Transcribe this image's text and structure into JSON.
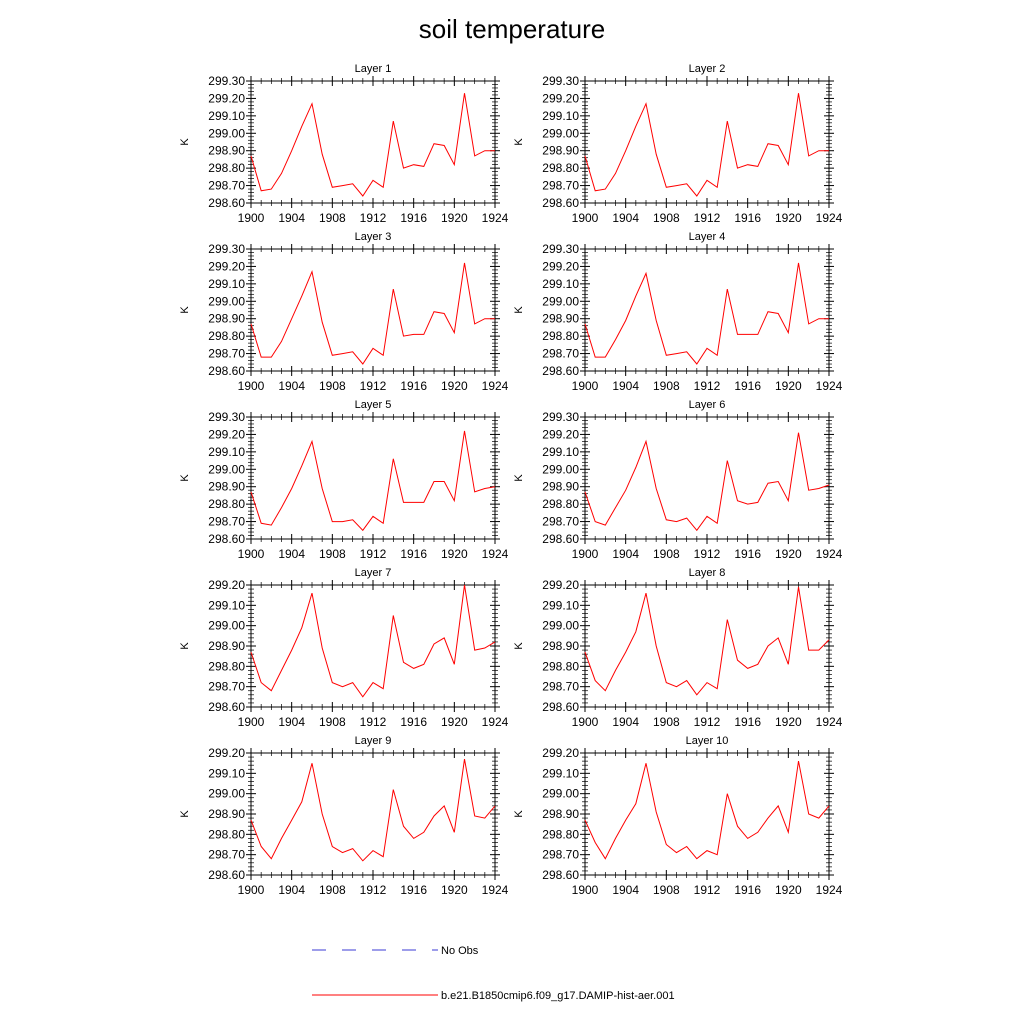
{
  "title": "soil temperature",
  "legend": {
    "obs_label": "No Obs",
    "model_label": "b.e21.B1850cmip6.f09_g17.DAMIP-hist-aer.001",
    "obs_color": "#3b3bd6",
    "model_color": "#ff0000"
  },
  "chart_data": [
    {
      "type": "line",
      "title": "Layer 1",
      "ylabel": "K",
      "xlim": [
        1900,
        1924
      ],
      "ylim": [
        298.6,
        299.3
      ],
      "xticks": [
        "1900",
        "1904",
        "1908",
        "1912",
        "1916",
        "1920",
        "1924"
      ],
      "yticks": [
        "298.60",
        "298.70",
        "298.80",
        "298.90",
        "299.00",
        "299.10",
        "299.20",
        "299.30"
      ],
      "x": [
        1900,
        1901,
        1902,
        1903,
        1904,
        1905,
        1906,
        1907,
        1908,
        1909,
        1910,
        1911,
        1912,
        1913,
        1914,
        1915,
        1916,
        1917,
        1918,
        1919,
        1920,
        1921,
        1922,
        1923,
        1924
      ],
      "series": [
        {
          "values": [
            298.87,
            298.67,
            298.68,
            298.77,
            298.9,
            299.04,
            299.17,
            298.88,
            298.69,
            298.7,
            298.71,
            298.64,
            298.73,
            298.69,
            299.07,
            298.8,
            298.82,
            298.81,
            298.94,
            298.93,
            298.82,
            299.23,
            298.87,
            298.9,
            298.9
          ]
        }
      ]
    },
    {
      "type": "line",
      "title": "Layer 2",
      "ylabel": "K",
      "xlim": [
        1900,
        1924
      ],
      "ylim": [
        298.6,
        299.3
      ],
      "xticks": [
        "1900",
        "1904",
        "1908",
        "1912",
        "1916",
        "1920",
        "1924"
      ],
      "yticks": [
        "298.60",
        "298.70",
        "298.80",
        "298.90",
        "299.00",
        "299.10",
        "299.20",
        "299.30"
      ],
      "x": [
        1900,
        1901,
        1902,
        1903,
        1904,
        1905,
        1906,
        1907,
        1908,
        1909,
        1910,
        1911,
        1912,
        1913,
        1914,
        1915,
        1916,
        1917,
        1918,
        1919,
        1920,
        1921,
        1922,
        1923,
        1924
      ],
      "series": [
        {
          "values": [
            298.87,
            298.67,
            298.68,
            298.77,
            298.9,
            299.04,
            299.17,
            298.88,
            298.69,
            298.7,
            298.71,
            298.64,
            298.73,
            298.69,
            299.07,
            298.8,
            298.82,
            298.81,
            298.94,
            298.93,
            298.82,
            299.23,
            298.87,
            298.9,
            298.9
          ]
        }
      ]
    },
    {
      "type": "line",
      "title": "Layer 3",
      "ylabel": "K",
      "xlim": [
        1900,
        1924
      ],
      "ylim": [
        298.6,
        299.3
      ],
      "xticks": [
        "1900",
        "1904",
        "1908",
        "1912",
        "1916",
        "1920",
        "1924"
      ],
      "yticks": [
        "298.60",
        "298.70",
        "298.80",
        "298.90",
        "299.00",
        "299.10",
        "299.20",
        "299.30"
      ],
      "x": [
        1900,
        1901,
        1902,
        1903,
        1904,
        1905,
        1906,
        1907,
        1908,
        1909,
        1910,
        1911,
        1912,
        1913,
        1914,
        1915,
        1916,
        1917,
        1918,
        1919,
        1920,
        1921,
        1922,
        1923,
        1924
      ],
      "series": [
        {
          "values": [
            298.87,
            298.68,
            298.68,
            298.77,
            298.9,
            299.03,
            299.17,
            298.88,
            298.69,
            298.7,
            298.71,
            298.64,
            298.73,
            298.69,
            299.07,
            298.8,
            298.81,
            298.81,
            298.94,
            298.93,
            298.82,
            299.22,
            298.87,
            298.9,
            298.9
          ]
        }
      ]
    },
    {
      "type": "line",
      "title": "Layer 4",
      "ylabel": "K",
      "xlim": [
        1900,
        1924
      ],
      "ylim": [
        298.6,
        299.3
      ],
      "xticks": [
        "1900",
        "1904",
        "1908",
        "1912",
        "1916",
        "1920",
        "1924"
      ],
      "yticks": [
        "298.60",
        "298.70",
        "298.80",
        "298.90",
        "299.00",
        "299.10",
        "299.20",
        "299.30"
      ],
      "x": [
        1900,
        1901,
        1902,
        1903,
        1904,
        1905,
        1906,
        1907,
        1908,
        1909,
        1910,
        1911,
        1912,
        1913,
        1914,
        1915,
        1916,
        1917,
        1918,
        1919,
        1920,
        1921,
        1922,
        1923,
        1924
      ],
      "series": [
        {
          "values": [
            298.87,
            298.68,
            298.68,
            298.78,
            298.89,
            299.03,
            299.16,
            298.89,
            298.69,
            298.7,
            298.71,
            298.64,
            298.73,
            298.69,
            299.07,
            298.81,
            298.81,
            298.81,
            298.94,
            298.93,
            298.82,
            299.22,
            298.87,
            298.9,
            298.9
          ]
        }
      ]
    },
    {
      "type": "line",
      "title": "Layer 5",
      "ylabel": "K",
      "xlim": [
        1900,
        1924
      ],
      "ylim": [
        298.6,
        299.3
      ],
      "xticks": [
        "1900",
        "1904",
        "1908",
        "1912",
        "1916",
        "1920",
        "1924"
      ],
      "yticks": [
        "298.60",
        "298.70",
        "298.80",
        "298.90",
        "299.00",
        "299.10",
        "299.20",
        "299.30"
      ],
      "x": [
        1900,
        1901,
        1902,
        1903,
        1904,
        1905,
        1906,
        1907,
        1908,
        1909,
        1910,
        1911,
        1912,
        1913,
        1914,
        1915,
        1916,
        1917,
        1918,
        1919,
        1920,
        1921,
        1922,
        1923,
        1924
      ],
      "series": [
        {
          "values": [
            298.87,
            298.69,
            298.68,
            298.78,
            298.89,
            299.02,
            299.16,
            298.89,
            298.7,
            298.7,
            298.71,
            298.65,
            298.73,
            298.69,
            299.06,
            298.81,
            298.81,
            298.81,
            298.93,
            298.93,
            298.82,
            299.22,
            298.87,
            298.89,
            298.9
          ]
        }
      ]
    },
    {
      "type": "line",
      "title": "Layer 6",
      "ylabel": "K",
      "xlim": [
        1900,
        1924
      ],
      "ylim": [
        298.6,
        299.3
      ],
      "xticks": [
        "1900",
        "1904",
        "1908",
        "1912",
        "1916",
        "1920",
        "1924"
      ],
      "yticks": [
        "298.60",
        "298.70",
        "298.80",
        "298.90",
        "299.00",
        "299.10",
        "299.20",
        "299.30"
      ],
      "x": [
        1900,
        1901,
        1902,
        1903,
        1904,
        1905,
        1906,
        1907,
        1908,
        1909,
        1910,
        1911,
        1912,
        1913,
        1914,
        1915,
        1916,
        1917,
        1918,
        1919,
        1920,
        1921,
        1922,
        1923,
        1924
      ],
      "series": [
        {
          "values": [
            298.87,
            298.7,
            298.68,
            298.78,
            298.88,
            299.01,
            299.16,
            298.89,
            298.71,
            298.7,
            298.72,
            298.65,
            298.73,
            298.69,
            299.05,
            298.82,
            298.8,
            298.81,
            298.92,
            298.93,
            298.82,
            299.21,
            298.88,
            298.89,
            298.91
          ]
        }
      ]
    },
    {
      "type": "line",
      "title": "Layer 7",
      "ylabel": "K",
      "xlim": [
        1900,
        1924
      ],
      "ylim": [
        298.6,
        299.2
      ],
      "xticks": [
        "1900",
        "1904",
        "1908",
        "1912",
        "1916",
        "1920",
        "1924"
      ],
      "yticks": [
        "298.60",
        "298.70",
        "298.80",
        "298.90",
        "299.00",
        "299.10",
        "299.20"
      ],
      "x": [
        1900,
        1901,
        1902,
        1903,
        1904,
        1905,
        1906,
        1907,
        1908,
        1909,
        1910,
        1911,
        1912,
        1913,
        1914,
        1915,
        1916,
        1917,
        1918,
        1919,
        1920,
        1921,
        1922,
        1923,
        1924
      ],
      "series": [
        {
          "values": [
            298.87,
            298.72,
            298.68,
            298.78,
            298.88,
            298.99,
            299.16,
            298.89,
            298.72,
            298.7,
            298.72,
            298.65,
            298.72,
            298.69,
            299.05,
            298.82,
            298.79,
            298.81,
            298.91,
            298.94,
            298.81,
            299.2,
            298.88,
            298.89,
            298.92
          ]
        }
      ]
    },
    {
      "type": "line",
      "title": "Layer 8",
      "ylabel": "K",
      "xlim": [
        1900,
        1924
      ],
      "ylim": [
        298.6,
        299.2
      ],
      "xticks": [
        "1900",
        "1904",
        "1908",
        "1912",
        "1916",
        "1920",
        "1924"
      ],
      "yticks": [
        "298.60",
        "298.70",
        "298.80",
        "298.90",
        "299.00",
        "299.10",
        "299.20"
      ],
      "x": [
        1900,
        1901,
        1902,
        1903,
        1904,
        1905,
        1906,
        1907,
        1908,
        1909,
        1910,
        1911,
        1912,
        1913,
        1914,
        1915,
        1916,
        1917,
        1918,
        1919,
        1920,
        1921,
        1922,
        1923,
        1924
      ],
      "series": [
        {
          "values": [
            298.87,
            298.73,
            298.68,
            298.78,
            298.87,
            298.97,
            299.16,
            298.9,
            298.72,
            298.7,
            298.73,
            298.66,
            298.72,
            298.69,
            299.03,
            298.83,
            298.79,
            298.81,
            298.9,
            298.94,
            298.81,
            299.19,
            298.88,
            298.88,
            298.93
          ]
        }
      ]
    },
    {
      "type": "line",
      "title": "Layer 9",
      "ylabel": "K",
      "xlim": [
        1900,
        1924
      ],
      "ylim": [
        298.6,
        299.2
      ],
      "xticks": [
        "1900",
        "1904",
        "1908",
        "1912",
        "1916",
        "1920",
        "1924"
      ],
      "yticks": [
        "298.60",
        "298.70",
        "298.80",
        "298.90",
        "299.00",
        "299.10",
        "299.20"
      ],
      "x": [
        1900,
        1901,
        1902,
        1903,
        1904,
        1905,
        1906,
        1907,
        1908,
        1909,
        1910,
        1911,
        1912,
        1913,
        1914,
        1915,
        1916,
        1917,
        1918,
        1919,
        1920,
        1921,
        1922,
        1923,
        1924
      ],
      "series": [
        {
          "values": [
            298.87,
            298.74,
            298.68,
            298.78,
            298.87,
            298.96,
            299.15,
            298.9,
            298.74,
            298.71,
            298.73,
            298.67,
            298.72,
            298.69,
            299.02,
            298.84,
            298.78,
            298.81,
            298.89,
            298.94,
            298.81,
            299.17,
            298.89,
            298.88,
            298.94
          ]
        }
      ]
    },
    {
      "type": "line",
      "title": "Layer 10",
      "ylabel": "K",
      "xlim": [
        1900,
        1924
      ],
      "ylim": [
        298.6,
        299.2
      ],
      "xticks": [
        "1900",
        "1904",
        "1908",
        "1912",
        "1916",
        "1920",
        "1924"
      ],
      "yticks": [
        "298.60",
        "298.70",
        "298.80",
        "298.90",
        "299.00",
        "299.10",
        "299.20"
      ],
      "x": [
        1900,
        1901,
        1902,
        1903,
        1904,
        1905,
        1906,
        1907,
        1908,
        1909,
        1910,
        1911,
        1912,
        1913,
        1914,
        1915,
        1916,
        1917,
        1918,
        1919,
        1920,
        1921,
        1922,
        1923,
        1924
      ],
      "series": [
        {
          "values": [
            298.87,
            298.76,
            298.68,
            298.78,
            298.87,
            298.95,
            299.15,
            298.91,
            298.75,
            298.71,
            298.74,
            298.68,
            298.72,
            298.7,
            299.0,
            298.84,
            298.78,
            298.81,
            298.88,
            298.94,
            298.81,
            299.16,
            298.9,
            298.88,
            298.94
          ]
        }
      ]
    }
  ]
}
